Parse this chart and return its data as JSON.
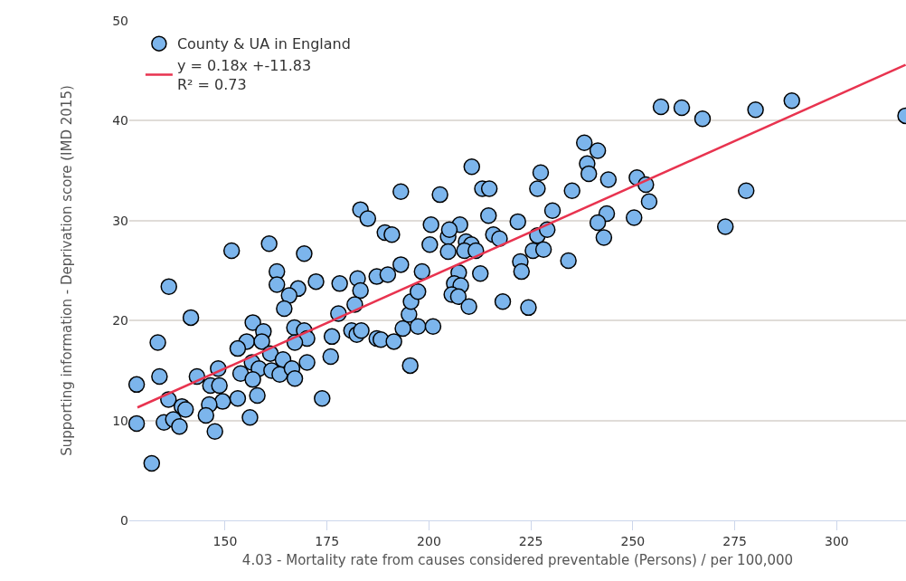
{
  "chart_data": {
    "type": "scatter",
    "xlabel": "4.03 - Mortality rate from causes considered preventable (Persons) / per 100,000",
    "ylabel": "Supporting information - Deprivation score (IMD 2015)",
    "xlim": [
      126.5,
      317
    ],
    "xticks": [
      150,
      175,
      200,
      225,
      250,
      275,
      300
    ],
    "ylim": [
      0,
      50
    ],
    "yticks": [
      0,
      10,
      20,
      30,
      40,
      50
    ],
    "grid": "y",
    "legend": "top left",
    "marker": "circle",
    "series": [
      {
        "name": "County & UA in England",
        "color": "#7cb5ec",
        "x": [
          160.8,
          151.6,
          136.2,
          162.7,
          162.7,
          141.6,
          156.8,
          133.5,
          159.4,
          155.3,
          153.1,
          159.0,
          161.1,
          156.6,
          158.3,
          148.3,
          143.1,
          133.9,
          128.3,
          153.8,
          156.8,
          161.4,
          146.4,
          148.6,
          136.1,
          139.4,
          140.3,
          149.4,
          153.1,
          157.9,
          146.1,
          145.3,
          135.0,
          137.3,
          138.8,
          128.3,
          147.5,
          156.1,
          132.0,
          193.1,
          183.2,
          185.0,
          189.2,
          190.9,
          169.4,
          172.3,
          178.1,
          182.5,
          183.2,
          187.2,
          189.9,
          193.1,
          167.9,
          165.7,
          164.5,
          181.8,
          177.8,
          167.0,
          169.4,
          170.1,
          167.1,
          164.2,
          163.4,
          166.4,
          167.1,
          170.1,
          176.2,
          175.9,
          173.8,
          181.0,
          182.3,
          183.4,
          187.2,
          188.2,
          191.4,
          193.6,
          195.4,
          195.1,
          195.6,
          202.7,
          210.5,
          213.1,
          214.8,
          227.4,
          226.6,
          200.5,
          207.6,
          214.6,
          221.8,
          230.3,
          200.2,
          204.7,
          205.0,
          204.7,
          209.1,
          210.4,
          208.7,
          211.5,
          215.8,
          217.3,
          226.6,
          229.0,
          225.5,
          228.1,
          222.4,
          222.7,
          212.6,
          207.3,
          206.2,
          207.8,
          205.6,
          207.2,
          209.8,
          198.3,
          197.3,
          197.3,
          201.0,
          218.1,
          224.4,
          256.9,
          262.0,
          267.1,
          280.1,
          289.0,
          316.9,
          238.1,
          241.4,
          238.8,
          239.2,
          244.0,
          235.1,
          251.0,
          253.2,
          254.0,
          250.3,
          243.6,
          241.4,
          242.9,
          234.2,
          272.7,
          277.8
        ],
        "values": [
          27.7,
          27.0,
          23.4,
          24.9,
          23.6,
          20.3,
          19.8,
          17.8,
          18.9,
          17.9,
          17.2,
          17.9,
          16.7,
          15.8,
          15.2,
          15.2,
          14.4,
          14.4,
          13.6,
          14.7,
          14.1,
          15.0,
          13.5,
          13.5,
          12.1,
          11.4,
          11.1,
          11.9,
          12.2,
          12.5,
          11.6,
          10.5,
          9.8,
          10.1,
          9.4,
          9.7,
          8.9,
          10.3,
          5.7,
          32.9,
          31.1,
          30.2,
          28.8,
          28.6,
          26.7,
          23.9,
          23.7,
          24.2,
          23.0,
          24.4,
          24.6,
          25.6,
          23.2,
          22.5,
          21.2,
          21.6,
          20.7,
          19.3,
          19.0,
          18.2,
          17.8,
          16.1,
          14.6,
          15.2,
          14.2,
          15.8,
          18.4,
          16.4,
          12.2,
          19.0,
          18.6,
          19.0,
          18.2,
          18.1,
          17.9,
          19.2,
          15.5,
          20.6,
          21.9,
          32.6,
          35.4,
          33.2,
          33.2,
          34.8,
          33.2,
          29.6,
          29.6,
          30.5,
          29.9,
          31.0,
          27.6,
          28.4,
          29.1,
          26.9,
          27.9,
          27.6,
          27.0,
          27.0,
          28.6,
          28.2,
          28.5,
          29.1,
          27.0,
          27.1,
          25.9,
          24.9,
          24.7,
          24.8,
          23.7,
          23.5,
          22.6,
          22.4,
          21.4,
          24.9,
          22.9,
          19.4,
          19.4,
          21.9,
          21.3,
          41.4,
          41.3,
          40.2,
          41.1,
          42.0,
          40.5,
          37.8,
          37.0,
          35.7,
          34.7,
          34.1,
          33.0,
          34.3,
          33.6,
          31.9,
          30.3,
          30.7,
          29.8,
          28.3,
          26.0,
          29.4,
          33.0
        ]
      },
      {
        "name": "y = 0.18x +-11.83\nR² = 0.73",
        "color": "#e8334f",
        "type": "line",
        "marker": "none",
        "x": [
          128.5,
          316.9
        ],
        "values": [
          11.3,
          45.6
        ]
      }
    ]
  }
}
